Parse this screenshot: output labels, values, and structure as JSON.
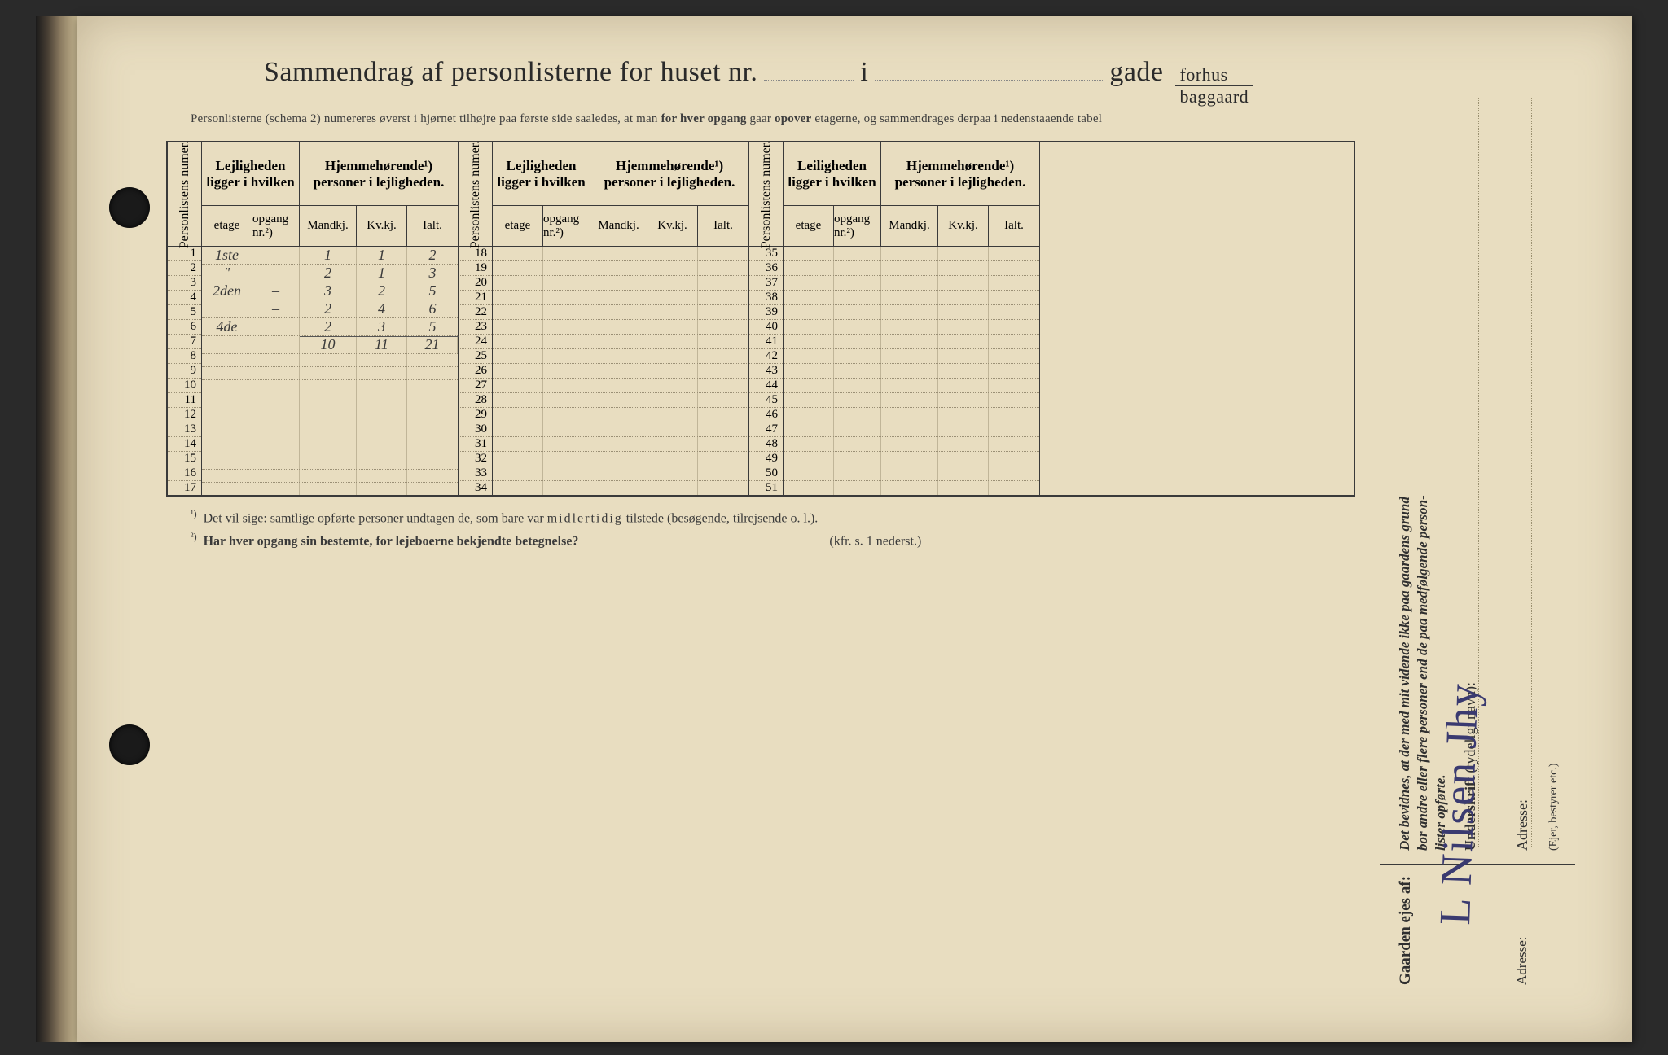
{
  "title": {
    "pre": "Sammendrag af personlisterne for huset nr.",
    "mid": "i",
    "post": "gade",
    "frac_top": "forhus",
    "frac_bot": "baggaard"
  },
  "subtitle": "Personlisterne (schema 2) numereres øverst i hjørnet tilhøjre paa første side saaledes, at man for hver opgang gaar opover etagerne, og sammendrages derpaa i nedenstaaende tabel",
  "subtitle_bold1": "for hver opgang",
  "subtitle_bold2": "opover",
  "headers": {
    "rot": "Personlistens numer.",
    "lej": "Lejligheden ligger i hvilken",
    "lei": "Leiligheden ligger i hvilken",
    "hjem": "Hjemmehørende¹) personer i lejligheden.",
    "etage": "etage",
    "opgang": "opgang nr.²)",
    "mandkj": "Mandkj.",
    "kvkj": "Kv.kj.",
    "ialt": "Ialt."
  },
  "rownums": {
    "a": [
      1,
      2,
      3,
      4,
      5,
      6,
      7,
      8,
      9,
      10,
      11,
      12,
      13,
      14,
      15,
      16,
      17
    ],
    "b": [
      18,
      19,
      20,
      21,
      22,
      23,
      24,
      25,
      26,
      27,
      28,
      29,
      30,
      31,
      32,
      33,
      34
    ],
    "c": [
      35,
      36,
      37,
      38,
      39,
      40,
      41,
      42,
      43,
      44,
      45,
      46,
      47,
      48,
      49,
      50,
      51
    ]
  },
  "data_rows": [
    {
      "etage": "1ste",
      "opgang": "",
      "m": "1",
      "k": "1",
      "i": "2"
    },
    {
      "etage": "\"",
      "opgang": "",
      "m": "2",
      "k": "1",
      "i": "3"
    },
    {
      "etage": "2den",
      "opgang": "–",
      "m": "3",
      "k": "2",
      "i": "5"
    },
    {
      "etage": "",
      "opgang": "–",
      "m": "2",
      "k": "4",
      "i": "6"
    },
    {
      "etage": "4de",
      "opgang": "",
      "m": "2",
      "k": "3",
      "i": "5"
    },
    {
      "etage": "",
      "opgang": "",
      "m": "10",
      "k": "11",
      "i": "21"
    }
  ],
  "footnotes": {
    "f1_sup": "¹)",
    "f1": "Det vil sige: samtlige opførte personer undtagen de, som bare var midlertidig tilstede (besøgende, tilrejsende o. l.).",
    "f1_sp": "midlertidig",
    "f2_sup": "²)",
    "f2": "Har hver opgang sin bestemte, for lejeboerne bekjendte betegnelse?",
    "f2_tail": "(kfr. s. 1 nederst.)"
  },
  "right": {
    "attest_l1": "Det bevidnes, at der med mit vidende ikke paa gaardens grund",
    "attest_l2": "bor andre eller flere personer end de paa medfølgende        person-",
    "attest_l3": "lister opførte.",
    "under_b": "Underskrift",
    "under_r": " (tydeligt navn):",
    "addr": "Adresse:",
    "role": "(Ejer, bestyrer etc.)",
    "owner": "Gaarden ejes af:",
    "addr2": "Adresse:",
    "signature": "L Nilsen Jhy"
  },
  "colors": {
    "paper": "#e8ddc0",
    "ink": "#2a2a2a",
    "rule": "#3a3a3a",
    "dotted": "#9a8f75",
    "hand": "#4a4a4a",
    "sig": "#3a3a70"
  }
}
